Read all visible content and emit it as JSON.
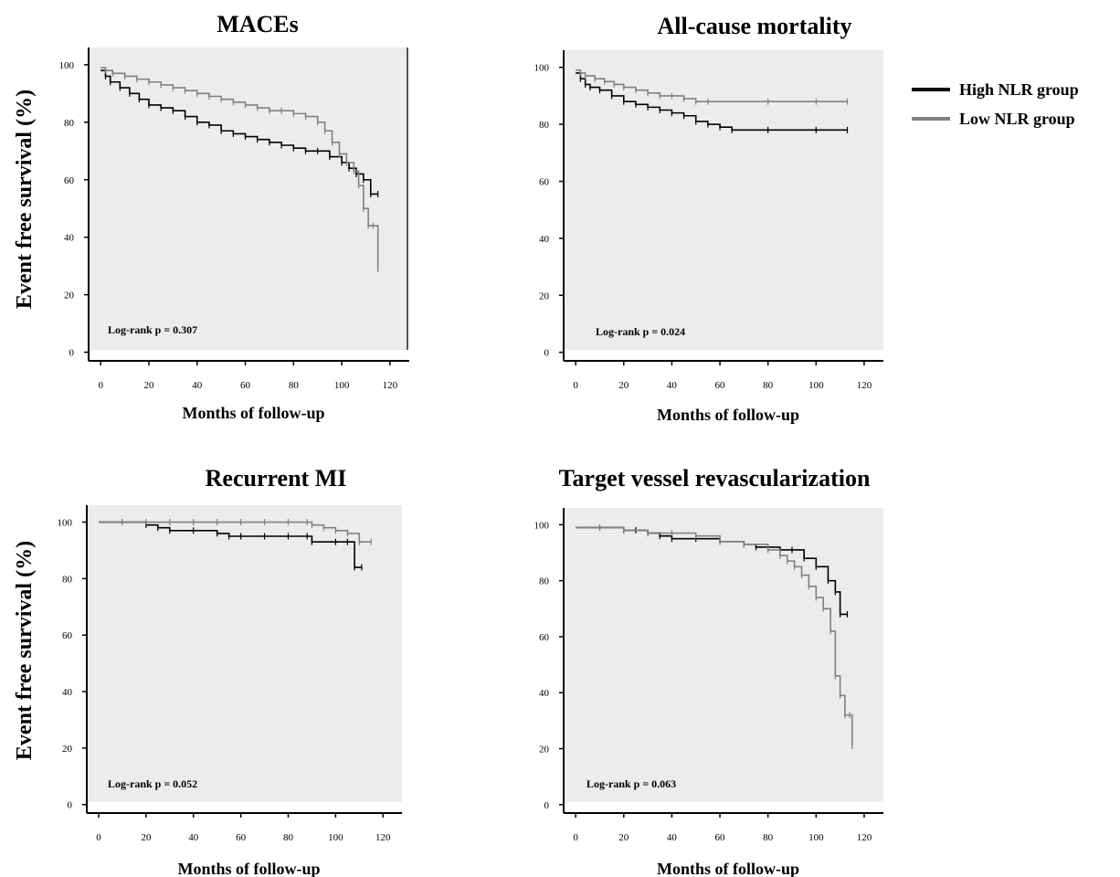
{
  "figure": {
    "ylabel_top": "Event free survival (%)",
    "ylabel_bottom": "Event free survival (%)",
    "legend": [
      {
        "label": "High NLR group",
        "color": "#000000"
      },
      {
        "label": "Low NLR group",
        "color": "#808080"
      }
    ],
    "background": "#ececec"
  },
  "chart_data": [
    {
      "type": "line",
      "title": "MACEs",
      "xlabel": "Months of follow-up",
      "ylabel": "Event free survival (%)",
      "xlim": [
        -5,
        128
      ],
      "ylim": [
        -3,
        106
      ],
      "xticks": [
        0,
        20,
        40,
        60,
        80,
        100,
        120
      ],
      "yticks": [
        0,
        20,
        40,
        60,
        80,
        100
      ],
      "annotation": "Log-rank p = 0.307",
      "series": [
        {
          "name": "High NLR group",
          "color": "#000000",
          "x": [
            0,
            2,
            4,
            8,
            12,
            16,
            20,
            25,
            30,
            35,
            40,
            45,
            50,
            55,
            60,
            65,
            70,
            75,
            80,
            85,
            90,
            95,
            100,
            103,
            106,
            109,
            112,
            115
          ],
          "y": [
            98,
            96,
            94,
            92,
            90,
            88,
            86,
            85,
            84,
            82,
            80,
            79,
            77,
            76,
            75,
            74,
            73,
            72,
            71,
            70,
            70,
            68,
            66,
            64,
            62,
            60,
            55,
            55
          ]
        },
        {
          "name": "Low NLR group",
          "color": "#808080",
          "x": [
            0,
            2,
            5,
            10,
            15,
            20,
            25,
            30,
            35,
            40,
            45,
            50,
            55,
            60,
            65,
            70,
            75,
            80,
            85,
            90,
            93,
            96,
            99,
            102,
            105,
            107,
            109,
            111,
            113,
            115
          ],
          "y": [
            99,
            98,
            97,
            96,
            95,
            94,
            93,
            92,
            91,
            90,
            89,
            88,
            87,
            86,
            85,
            84,
            84,
            83,
            82,
            80,
            77,
            73,
            69,
            66,
            63,
            58,
            50,
            44,
            44,
            29
          ]
        }
      ]
    },
    {
      "type": "line",
      "title": "All-cause mortality",
      "xlabel": "Months of follow-up",
      "ylabel": "Event free survival (%)",
      "xlim": [
        -5,
        128
      ],
      "ylim": [
        -3,
        106
      ],
      "xticks": [
        0,
        20,
        40,
        60,
        80,
        100,
        120
      ],
      "yticks": [
        0,
        20,
        40,
        60,
        80,
        100
      ],
      "annotation": "Log-rank p = 0.024",
      "series": [
        {
          "name": "High NLR group",
          "color": "#000000",
          "x": [
            0,
            2,
            4,
            6,
            10,
            15,
            20,
            25,
            30,
            35,
            40,
            45,
            50,
            55,
            60,
            65,
            80,
            100,
            113
          ],
          "y": [
            98,
            96,
            94,
            93,
            92,
            90,
            88,
            87,
            86,
            85,
            84,
            83,
            81,
            80,
            79,
            78,
            78,
            78,
            78
          ]
        },
        {
          "name": "Low NLR group",
          "color": "#808080",
          "x": [
            0,
            2,
            4,
            8,
            12,
            16,
            20,
            25,
            30,
            35,
            40,
            45,
            50,
            55,
            80,
            100,
            113
          ],
          "y": [
            99,
            98,
            97,
            96,
            95,
            94,
            93,
            92,
            91,
            90,
            90,
            89,
            88,
            88,
            88,
            88,
            88
          ]
        }
      ]
    },
    {
      "type": "line",
      "title": "Recurrent MI",
      "xlabel": "Months of follow-up",
      "ylabel": "Event free survival (%)",
      "xlim": [
        -5,
        128
      ],
      "ylim": [
        -3,
        106
      ],
      "xticks": [
        0,
        20,
        40,
        60,
        80,
        100,
        120
      ],
      "yticks": [
        0,
        20,
        40,
        60,
        80,
        100
      ],
      "annotation": "Log-rank p = 0.052",
      "series": [
        {
          "name": "High NLR group",
          "color": "#000000",
          "x": [
            0,
            10,
            20,
            25,
            30,
            40,
            50,
            55,
            60,
            70,
            80,
            88,
            90,
            100,
            105,
            108,
            111
          ],
          "y": [
            100,
            100,
            99,
            98,
            97,
            97,
            96,
            95,
            95,
            95,
            95,
            95,
            93,
            93,
            93,
            84,
            84
          ]
        },
        {
          "name": "Low NLR group",
          "color": "#808080",
          "x": [
            0,
            10,
            20,
            30,
            40,
            50,
            60,
            70,
            80,
            88,
            90,
            95,
            100,
            105,
            110,
            115
          ],
          "y": [
            100,
            100,
            100,
            100,
            100,
            100,
            100,
            100,
            100,
            100,
            99,
            98,
            97,
            96,
            93,
            93
          ]
        }
      ]
    },
    {
      "type": "line",
      "title": "Target vessel revascularization",
      "xlabel": "Months of follow-up",
      "ylabel": "Event free survival (%)",
      "xlim": [
        -5,
        128
      ],
      "ylim": [
        -3,
        106
      ],
      "xticks": [
        0,
        20,
        40,
        60,
        80,
        100,
        120
      ],
      "yticks": [
        0,
        20,
        40,
        60,
        80,
        100
      ],
      "annotation": "Log-rank p = 0.063",
      "series": [
        {
          "name": "High NLR group",
          "color": "#000000",
          "x": [
            0,
            10,
            20,
            25,
            30,
            35,
            40,
            50,
            60,
            70,
            75,
            80,
            85,
            90,
            95,
            100,
            105,
            108,
            110,
            113
          ],
          "y": [
            99,
            99,
            98,
            98,
            97,
            96,
            95,
            95,
            94,
            93,
            92,
            92,
            91,
            91,
            88,
            85,
            80,
            76,
            68,
            68
          ]
        },
        {
          "name": "Low NLR group",
          "color": "#808080",
          "x": [
            0,
            10,
            20,
            30,
            40,
            50,
            60,
            70,
            80,
            85,
            88,
            91,
            94,
            97,
            100,
            103,
            106,
            108,
            110,
            112,
            114,
            115
          ],
          "y": [
            99,
            99,
            98,
            97,
            97,
            96,
            94,
            93,
            91,
            89,
            87,
            85,
            82,
            78,
            74,
            70,
            62,
            46,
            39,
            32,
            32,
            21
          ]
        }
      ]
    }
  ]
}
